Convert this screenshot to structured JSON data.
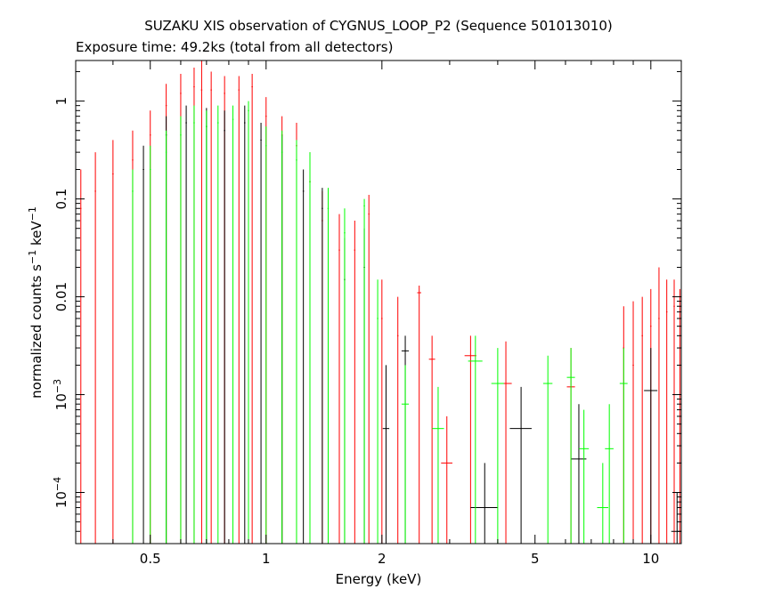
{
  "chart_data": {
    "type": "scatter",
    "title": "SUZAKU XIS observation of CYGNUS_LOOP_P2 (Sequence 501013010)",
    "subtitle": "Exposure time: 49.2ks (total from all detectors)",
    "xlabel": "Energy (keV)",
    "ylabel": {
      "base": "normalized counts s",
      "sup1": "−1",
      "mid": " keV",
      "sup2": "−1"
    },
    "xscale": "log",
    "yscale": "log",
    "xlim": [
      0.32,
      12.0
    ],
    "ylim": [
      3e-05,
      2.6
    ],
    "xticks": [
      {
        "v": 0.5,
        "label": "0.5"
      },
      {
        "v": 1,
        "label": "1"
      },
      {
        "v": 2,
        "label": "2"
      },
      {
        "v": 5,
        "label": "5"
      },
      {
        "v": 10,
        "label": "10"
      }
    ],
    "yticks": [
      {
        "v": 0.0001,
        "base": "10",
        "exp": "−4"
      },
      {
        "v": 0.001,
        "base": "10",
        "exp": "−3"
      },
      {
        "v": 0.01,
        "label": "0.01"
      },
      {
        "v": 0.1,
        "label": "0.1"
      },
      {
        "v": 1,
        "label": "1"
      }
    ],
    "series": [
      {
        "color": "#ff0000",
        "points": [
          {
            "x": 0.33,
            "y": 0.08,
            "up": 0.2
          },
          {
            "x": 0.36,
            "y": 0.12,
            "up": 0.3
          },
          {
            "x": 0.4,
            "y": 0.18,
            "up": 0.4
          },
          {
            "x": 0.45,
            "y": 0.25,
            "up": 0.5
          },
          {
            "x": 0.5,
            "y": 0.45,
            "up": 0.8
          },
          {
            "x": 0.55,
            "y": 0.9,
            "up": 1.5
          },
          {
            "x": 0.6,
            "y": 1.2,
            "up": 1.9
          },
          {
            "x": 0.65,
            "y": 1.4,
            "up": 2.2
          },
          {
            "x": 0.68,
            "y": 1.3,
            "up": 2.6
          },
          {
            "x": 0.72,
            "y": 1.3,
            "up": 2.0
          },
          {
            "x": 0.78,
            "y": 1.2,
            "up": 1.8
          },
          {
            "x": 0.85,
            "y": 1.3,
            "up": 1.8
          },
          {
            "x": 0.92,
            "y": 1.4,
            "up": 1.9
          },
          {
            "x": 1.0,
            "y": 0.7,
            "up": 1.1
          },
          {
            "x": 1.1,
            "y": 0.45,
            "up": 0.7
          },
          {
            "x": 1.2,
            "y": 0.35,
            "up": 0.6
          },
          {
            "x": 1.3,
            "y": 0.15,
            "up": 0.3
          },
          {
            "x": 1.4,
            "y": 0.06,
            "up": 0.12
          },
          {
            "x": 1.55,
            "y": 0.03,
            "up": 0.07
          },
          {
            "x": 1.7,
            "y": 0.03,
            "up": 0.06
          },
          {
            "x": 1.85,
            "y": 0.07,
            "up": 0.11
          },
          {
            "x": 2.0,
            "y": 0.006,
            "up": 0.015
          },
          {
            "x": 2.2,
            "y": 0.004,
            "up": 0.01
          },
          {
            "x": 2.5,
            "y": 0.011,
            "up": 0.013,
            "xe": 0.03
          },
          {
            "x": 2.7,
            "y": 0.0023,
            "up": 0.004,
            "xe": 0.05
          },
          {
            "x": 2.95,
            "y": 0.0002,
            "up": 0.0006,
            "xe": 0.1
          },
          {
            "x": 3.4,
            "y": 0.0025,
            "up": 0.004,
            "xe": 0.12
          },
          {
            "x": 4.2,
            "y": 0.0013,
            "up": 0.0035,
            "xe": 0.15
          },
          {
            "x": 6.2,
            "y": 0.0012,
            "up": 0.003,
            "xe": 0.15
          },
          {
            "x": 8.5,
            "y": 0.003,
            "up": 0.008
          },
          {
            "x": 9.0,
            "y": 0.002,
            "up": 0.009
          },
          {
            "x": 9.5,
            "y": 0.004,
            "up": 0.01
          },
          {
            "x": 10.0,
            "y": 0.005,
            "up": 0.012
          },
          {
            "x": 10.5,
            "y": 0.006,
            "up": 0.02
          },
          {
            "x": 11.0,
            "y": 0.007,
            "up": 0.015
          },
          {
            "x": 11.5,
            "y": 0.008,
            "up": 0.015
          },
          {
            "x": 11.9,
            "y": 0.01,
            "up": 0.012
          }
        ]
      },
      {
        "color": "#000000",
        "points": [
          {
            "x": 0.48,
            "y": 0.2,
            "up": 0.35
          },
          {
            "x": 0.55,
            "y": 0.45,
            "up": 0.7
          },
          {
            "x": 0.62,
            "y": 0.6,
            "up": 0.9
          },
          {
            "x": 0.7,
            "y": 0.55,
            "up": 0.85
          },
          {
            "x": 0.78,
            "y": 0.5,
            "up": 0.8
          },
          {
            "x": 0.88,
            "y": 0.6,
            "up": 0.9
          },
          {
            "x": 0.97,
            "y": 0.4,
            "up": 0.6
          },
          {
            "x": 1.1,
            "y": 0.3,
            "up": 0.45
          },
          {
            "x": 1.25,
            "y": 0.12,
            "up": 0.2
          },
          {
            "x": 1.4,
            "y": 0.08,
            "up": 0.13
          },
          {
            "x": 1.6,
            "y": 0.015,
            "up": 0.04
          },
          {
            "x": 1.8,
            "y": 0.02,
            "up": 0.05
          },
          {
            "x": 2.05,
            "y": 0.00045,
            "up": 0.002,
            "xe": 0.04
          },
          {
            "x": 2.3,
            "y": 0.0028,
            "up": 0.004,
            "xe": 0.05
          },
          {
            "x": 3.7,
            "y": 7e-05,
            "up": 0.0002,
            "xe": 0.3
          },
          {
            "x": 4.6,
            "y": 0.00045,
            "up": 0.0012,
            "xe": 0.3
          },
          {
            "x": 6.5,
            "y": 0.00022,
            "up": 0.0008,
            "xe": 0.3
          },
          {
            "x": 10.0,
            "y": 0.0011,
            "up": 0.003,
            "xe": 0.4
          },
          {
            "x": 11.7,
            "y": 4e-05,
            "up": 0.0001,
            "xe": 0.4
          }
        ]
      },
      {
        "color": "#00ff00",
        "points": [
          {
            "x": 0.45,
            "y": 0.12,
            "up": 0.2
          },
          {
            "x": 0.5,
            "y": 0.2,
            "up": 0.35
          },
          {
            "x": 0.55,
            "y": 0.3,
            "up": 0.5
          },
          {
            "x": 0.6,
            "y": 0.45,
            "up": 0.7
          },
          {
            "x": 0.65,
            "y": 0.6,
            "up": 0.9
          },
          {
            "x": 0.7,
            "y": 0.55,
            "up": 0.8
          },
          {
            "x": 0.75,
            "y": 0.6,
            "up": 0.9
          },
          {
            "x": 0.82,
            "y": 0.65,
            "up": 0.9
          },
          {
            "x": 0.9,
            "y": 0.8,
            "up": 1.0
          },
          {
            "x": 1.0,
            "y": 0.35,
            "up": 0.55
          },
          {
            "x": 1.1,
            "y": 0.3,
            "up": 0.5
          },
          {
            "x": 1.2,
            "y": 0.25,
            "up": 0.4
          },
          {
            "x": 1.3,
            "y": 0.15,
            "up": 0.3
          },
          {
            "x": 1.45,
            "y": 0.08,
            "up": 0.13
          },
          {
            "x": 1.6,
            "y": 0.045,
            "up": 0.08
          },
          {
            "x": 1.8,
            "y": 0.085,
            "up": 0.1
          },
          {
            "x": 1.95,
            "y": 0.006,
            "up": 0.015
          },
          {
            "x": 2.3,
            "y": 0.0008,
            "up": 0.002,
            "xe": 0.05
          },
          {
            "x": 2.8,
            "y": 0.00045,
            "up": 0.0012,
            "xe": 0.1
          },
          {
            "x": 3.5,
            "y": 0.0022,
            "up": 0.004,
            "xe": 0.15
          },
          {
            "x": 4.0,
            "y": 0.0013,
            "up": 0.003,
            "xe": 0.15
          },
          {
            "x": 5.4,
            "y": 0.0013,
            "up": 0.0025,
            "xe": 0.15
          },
          {
            "x": 6.2,
            "y": 0.0015,
            "up": 0.003,
            "xe": 0.15
          },
          {
            "x": 6.7,
            "y": 0.00028,
            "up": 0.0007,
            "xe": 0.2
          },
          {
            "x": 7.5,
            "y": 7e-05,
            "up": 0.0002,
            "xe": 0.25
          },
          {
            "x": 7.8,
            "y": 0.00028,
            "up": 0.0008,
            "xe": 0.2
          },
          {
            "x": 8.5,
            "y": 0.0013,
            "up": 0.003,
            "xe": 0.2
          }
        ]
      }
    ],
    "grid": false,
    "legend": "none"
  }
}
